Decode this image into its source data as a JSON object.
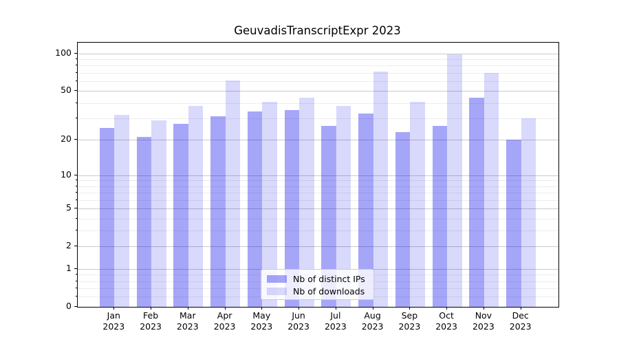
{
  "title": "GeuvadisTranscriptExpr 2023",
  "chart_data": {
    "type": "bar",
    "title": "GeuvadisTranscriptExpr 2023",
    "x_tick_months": [
      "Jan",
      "Feb",
      "Mar",
      "Apr",
      "May",
      "Jun",
      "Jul",
      "Aug",
      "Sep",
      "Oct",
      "Nov",
      "Dec"
    ],
    "x_tick_year": "2023",
    "series": [
      {
        "name": "Nb of distinct IPs",
        "color": "rgba(0,0,235,0.35)",
        "values": [
          25,
          21,
          27,
          31,
          34,
          35,
          26,
          33,
          23,
          26,
          44,
          20
        ]
      },
      {
        "name": "Nb of downloads",
        "color": "rgba(0,0,235,0.15)",
        "values": [
          32,
          29,
          38,
          61,
          41,
          44,
          38,
          72,
          41,
          98,
          70,
          30
        ]
      }
    ],
    "yscale": "log1p",
    "ylim": [
      0,
      123
    ],
    "y_ticks": [
      0,
      1,
      2,
      5,
      10,
      20,
      50,
      100
    ],
    "y_minor_ticks": [
      0.2,
      0.4,
      0.6,
      0.8,
      3,
      4,
      6,
      7,
      8,
      9,
      30,
      40,
      60,
      70,
      80,
      90
    ],
    "grid": true,
    "legend_position": "lower-center",
    "colors": {
      "major_grid": "#c9c9c9",
      "minor_grid": "#ededed",
      "spine": "#000000",
      "text": "#000000"
    }
  }
}
